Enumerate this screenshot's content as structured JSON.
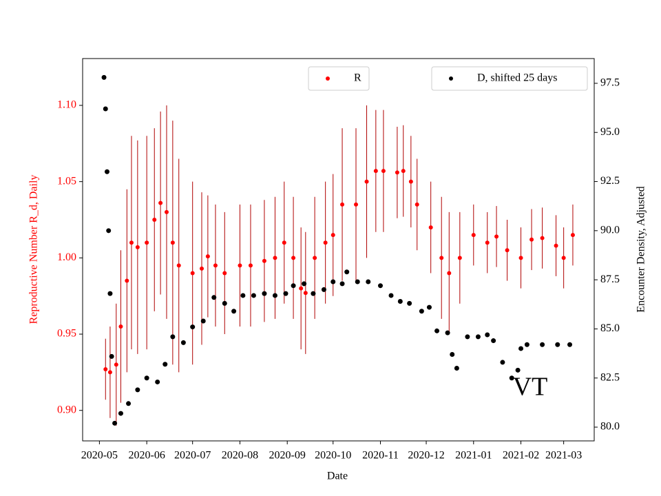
{
  "chart_data": {
    "type": "scatter",
    "xlabel": "Date",
    "ylabel": "Reproductive Number R_d, Daily",
    "y2label": "Encounter Density, Adjusted",
    "annotation": "VT",
    "xlim": [
      "2020-04-20",
      "2021-03-21"
    ],
    "xticks": [
      {
        "value": "2020-05-01",
        "label": "2020-05"
      },
      {
        "value": "2020-06-01",
        "label": "2020-06"
      },
      {
        "value": "2020-07-01",
        "label": "2020-07"
      },
      {
        "value": "2020-08-01",
        "label": "2020-08"
      },
      {
        "value": "2020-09-01",
        "label": "2020-09"
      },
      {
        "value": "2020-10-01",
        "label": "2020-10"
      },
      {
        "value": "2020-11-01",
        "label": "2020-11"
      },
      {
        "value": "2020-12-01",
        "label": "2020-12"
      },
      {
        "value": "2021-01-01",
        "label": "2021-01"
      },
      {
        "value": "2021-02-01",
        "label": "2021-02"
      },
      {
        "value": "2021-03-01",
        "label": "2021-03"
      }
    ],
    "ylim": [
      0.88,
      1.1307
    ],
    "yticks": [
      {
        "value": 0.9,
        "label": "0.90"
      },
      {
        "value": 0.95,
        "label": "0.95"
      },
      {
        "value": 1.0,
        "label": "1.00"
      },
      {
        "value": 1.05,
        "label": "1.05"
      },
      {
        "value": 1.1,
        "label": "1.10"
      }
    ],
    "y2lim": [
      79.3,
      98.76
    ],
    "y2ticks": [
      {
        "value": 80,
        "label": "80.0"
      },
      82.5,
      {
        "value": 85,
        "label": "85.0"
      },
      87.5,
      {
        "value": 90,
        "label": "90.0"
      },
      92.5,
      {
        "value": 95,
        "label": "95.0"
      },
      97.5
    ],
    "series": [
      {
        "name": "R",
        "color": "#ff0000",
        "error_color": "#b00000",
        "x": [
          "2020-05-05",
          "2020-05-08",
          "2020-05-12",
          "2020-05-15",
          "2020-05-19",
          "2020-05-22",
          "2020-05-26",
          "2020-06-01",
          "2020-06-06",
          "2020-06-10",
          "2020-06-14",
          "2020-06-18",
          "2020-06-22",
          "2020-07-01",
          "2020-07-07",
          "2020-07-11",
          "2020-07-16",
          "2020-07-22",
          "2020-08-01",
          "2020-08-08",
          "2020-08-17",
          "2020-08-24",
          "2020-08-30",
          "2020-09-05",
          "2020-09-10",
          "2020-09-13",
          "2020-09-19",
          "2020-09-26",
          "2020-10-01",
          "2020-10-07",
          "2020-10-16",
          "2020-10-23",
          "2020-10-29",
          "2020-11-03",
          "2020-11-12",
          "2020-11-16",
          "2020-11-21",
          "2020-11-25",
          "2020-12-04",
          "2020-12-11",
          "2020-12-16",
          "2020-12-23",
          "2021-01-01",
          "2021-01-10",
          "2021-01-16",
          "2021-01-23",
          "2021-02-01",
          "2021-02-08",
          "2021-02-15",
          "2021-02-24",
          "2021-03-01",
          "2021-03-07"
        ],
        "values": [
          0.927,
          0.925,
          0.93,
          0.955,
          0.985,
          1.01,
          1.007,
          1.01,
          1.025,
          1.036,
          1.03,
          1.01,
          0.995,
          0.99,
          0.993,
          1.001,
          0.995,
          0.99,
          0.995,
          0.995,
          0.998,
          1.0,
          1.01,
          1.0,
          0.98,
          0.977,
          1.0,
          1.01,
          1.015,
          1.035,
          1.035,
          1.05,
          1.057,
          1.057,
          1.056,
          1.057,
          1.05,
          1.035,
          1.02,
          1.0,
          0.99,
          1.0,
          1.015,
          1.01,
          1.014,
          1.005,
          1.0,
          1.012,
          1.013,
          1.008,
          1.0,
          1.015
        ],
        "errors": [
          0.02,
          0.03,
          0.04,
          0.05,
          0.06,
          0.07,
          0.07,
          0.07,
          0.06,
          0.06,
          0.07,
          0.08,
          0.07,
          0.06,
          0.05,
          0.04,
          0.04,
          0.04,
          0.04,
          0.04,
          0.04,
          0.04,
          0.04,
          0.04,
          0.04,
          0.04,
          0.04,
          0.04,
          0.04,
          0.05,
          0.05,
          0.05,
          0.04,
          0.04,
          0.03,
          0.03,
          0.03,
          0.03,
          0.03,
          0.04,
          0.04,
          0.03,
          0.02,
          0.02,
          0.02,
          0.02,
          0.02,
          0.02,
          0.02,
          0.02,
          0.02,
          0.02
        ]
      },
      {
        "name": "D, shifted 25 days",
        "color": "#000000",
        "axis": "y2",
        "x": [
          "2020-05-04",
          "2020-05-05",
          "2020-05-06",
          "2020-05-07",
          "2020-05-08",
          "2020-05-09",
          "2020-05-11",
          "2020-05-15",
          "2020-05-20",
          "2020-05-26",
          "2020-06-01",
          "2020-06-08",
          "2020-06-13",
          "2020-06-18",
          "2020-06-25",
          "2020-07-01",
          "2020-07-08",
          "2020-07-15",
          "2020-07-22",
          "2020-07-28",
          "2020-08-03",
          "2020-08-10",
          "2020-08-17",
          "2020-08-24",
          "2020-08-31",
          "2020-09-05",
          "2020-09-12",
          "2020-09-18",
          "2020-09-25",
          "2020-10-01",
          "2020-10-07",
          "2020-10-10",
          "2020-10-17",
          "2020-10-24",
          "2020-11-01",
          "2020-11-08",
          "2020-11-14",
          "2020-11-20",
          "2020-11-28",
          "2020-12-03",
          "2020-12-08",
          "2020-12-15",
          "2020-12-18",
          "2020-12-21",
          "2020-12-28",
          "2021-01-04",
          "2021-01-10",
          "2021-01-14",
          "2021-01-20",
          "2021-01-26",
          "2021-01-30",
          "2021-02-01",
          "2021-02-05",
          "2021-02-15",
          "2021-02-25",
          "2021-03-05"
        ],
        "values": [
          97.8,
          96.2,
          93.0,
          90.0,
          86.8,
          83.6,
          80.2,
          80.7,
          81.2,
          81.9,
          82.5,
          82.3,
          83.2,
          84.6,
          84.3,
          85.1,
          85.4,
          86.6,
          86.3,
          85.9,
          86.7,
          86.7,
          86.8,
          86.7,
          86.8,
          87.2,
          87.3,
          86.8,
          87.0,
          87.4,
          87.3,
          87.9,
          87.4,
          87.4,
          87.2,
          86.7,
          86.4,
          86.3,
          85.9,
          86.1,
          84.9,
          84.8,
          83.7,
          83.0,
          84.6,
          84.6,
          84.7,
          84.4,
          83.3,
          82.5,
          82.9,
          84.0,
          84.2,
          84.2,
          84.2,
          84.2
        ]
      }
    ]
  }
}
